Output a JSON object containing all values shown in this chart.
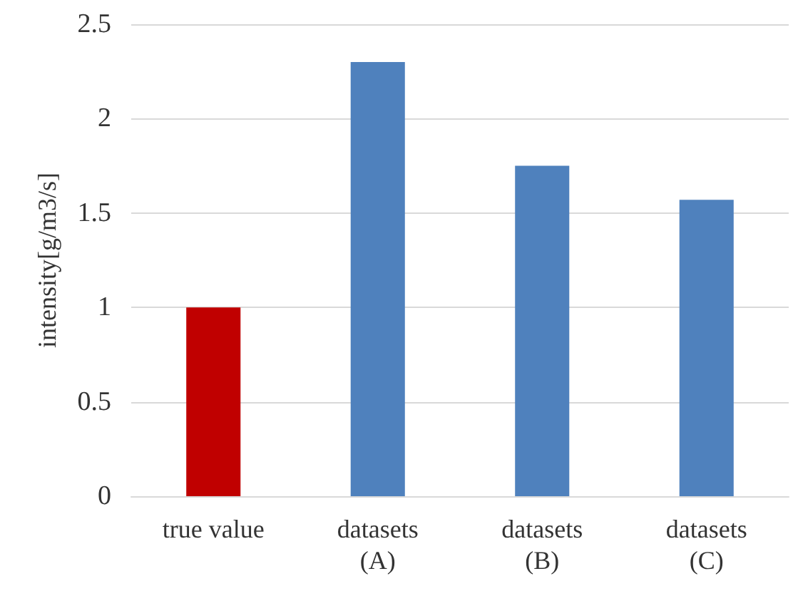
{
  "chart_data": {
    "type": "bar",
    "ylabel": "intensity[g/m3/s]",
    "categories": [
      "true value",
      "datasets\n(A)",
      "datasets\n(B)",
      "datasets\n(C)"
    ],
    "values": [
      1.0,
      2.3,
      1.75,
      1.57
    ],
    "colors": [
      "#c00000",
      "#4f81bd",
      "#4f81bd",
      "#4f81bd"
    ],
    "ylim": [
      0,
      2.5
    ],
    "yticks": [
      0,
      0.5,
      1,
      1.5,
      2,
      2.5
    ],
    "grid": "y"
  }
}
